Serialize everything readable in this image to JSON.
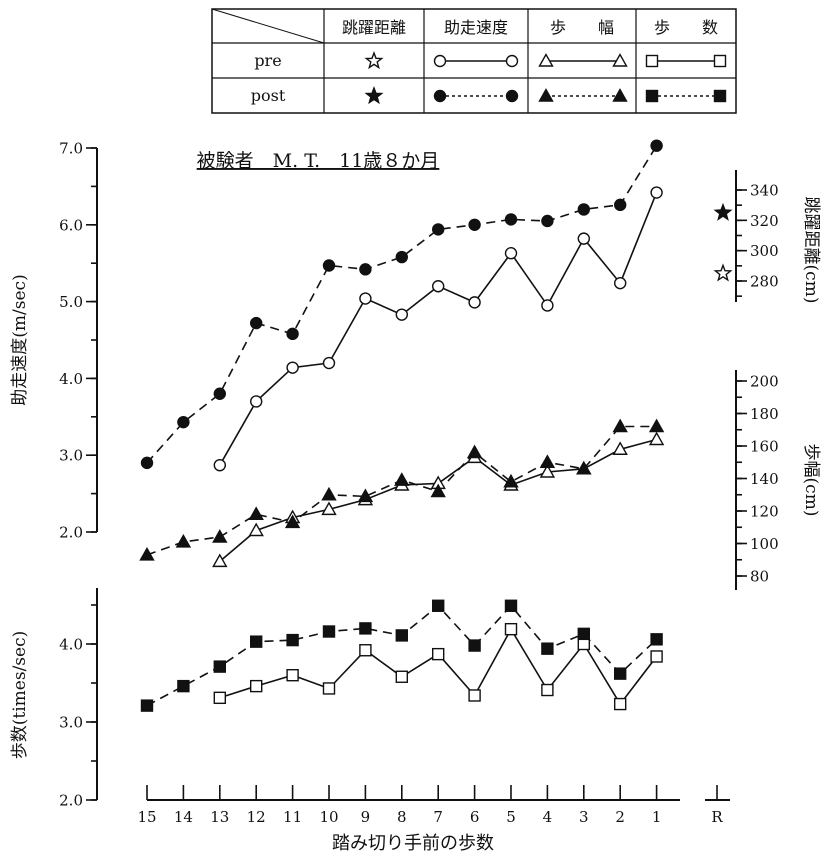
{
  "legend_table": {
    "columns": [
      "跳躍距離",
      "助走速度",
      "歩　　幅",
      "歩　　数"
    ],
    "rows": [
      {
        "label": "pre",
        "markers": [
          "star-open",
          "circle-open",
          "triangle-open",
          "square-open"
        ]
      },
      {
        "label": "post",
        "markers": [
          "star-filled",
          "circle-filled",
          "triangle-filled",
          "square-filled"
        ]
      }
    ]
  },
  "subject": "被験者　M. T.　11歳８か月",
  "colors": {
    "ink": "#111111",
    "background": "#ffffff"
  },
  "chart_data": [
    {
      "type": "line",
      "panel": "助走速度",
      "ylabel": "助走速度(m/sec)",
      "ylim": [
        2.0,
        7.0
      ],
      "yticks": [
        "2.0",
        "3.0",
        "4.0",
        "5.0",
        "6.0",
        "7.0"
      ],
      "x": [
        15,
        14,
        13,
        12,
        11,
        10,
        9,
        8,
        7,
        6,
        5,
        4,
        3,
        2,
        1
      ],
      "series": [
        {
          "name": "pre",
          "marker": "circle-open",
          "line": "solid",
          "values": [
            null,
            null,
            2.87,
            3.7,
            4.14,
            4.2,
            5.04,
            4.83,
            5.2,
            4.99,
            5.63,
            4.95,
            5.82,
            5.24,
            6.42
          ]
        },
        {
          "name": "post",
          "marker": "circle-filled",
          "line": "dashed",
          "values": [
            2.9,
            3.43,
            3.8,
            4.72,
            4.58,
            5.47,
            5.42,
            5.58,
            5.94,
            6.0,
            6.07,
            6.05,
            6.2,
            6.26,
            7.03
          ]
        }
      ]
    },
    {
      "type": "scatter",
      "panel": "跳躍距離",
      "ylabel": "跳躍距離(cm)",
      "ylim": [
        270,
        345
      ],
      "yticks": [
        "280",
        "300",
        "320",
        "340"
      ],
      "x": [
        "R"
      ],
      "series": [
        {
          "name": "pre",
          "marker": "star-open",
          "values": [
            285
          ]
        },
        {
          "name": "post",
          "marker": "star-filled",
          "values": [
            325
          ]
        }
      ]
    },
    {
      "type": "line",
      "panel": "歩幅",
      "ylabel": "歩幅(cm)",
      "ylim": [
        80,
        200
      ],
      "yticks": [
        "80",
        "100",
        "120",
        "140",
        "160",
        "180",
        "200"
      ],
      "x": [
        15,
        14,
        13,
        12,
        11,
        10,
        9,
        8,
        7,
        6,
        5,
        4,
        3,
        2,
        1
      ],
      "series": [
        {
          "name": "pre",
          "marker": "triangle-open",
          "line": "solid",
          "values": [
            null,
            null,
            89,
            108,
            116,
            121,
            127,
            136,
            137,
            153,
            136,
            144,
            146,
            158,
            164
          ]
        },
        {
          "name": "post",
          "marker": "triangle-filled",
          "line": "dashed",
          "values": [
            93,
            101,
            104,
            118,
            113,
            130,
            129,
            139,
            132,
            156,
            138,
            150,
            146,
            172,
            172
          ]
        }
      ]
    },
    {
      "type": "line",
      "panel": "歩数",
      "ylabel": "歩数(times/sec)",
      "ylim": [
        2.0,
        4.6
      ],
      "yticks": [
        "2.0",
        "3.0",
        "4.0"
      ],
      "xlabel": "踏み切り手前の歩数",
      "xticks": [
        "15",
        "14",
        "13",
        "12",
        "11",
        "10",
        "9",
        "8",
        "7",
        "6",
        "5",
        "4",
        "3",
        "2",
        "1",
        "R"
      ],
      "x": [
        15,
        14,
        13,
        12,
        11,
        10,
        9,
        8,
        7,
        6,
        5,
        4,
        3,
        2,
        1
      ],
      "series": [
        {
          "name": "pre",
          "marker": "square-open",
          "line": "solid",
          "values": [
            null,
            null,
            3.31,
            3.46,
            3.6,
            3.43,
            3.92,
            3.58,
            3.87,
            3.34,
            4.19,
            3.41,
            4.0,
            3.23,
            3.84
          ]
        },
        {
          "name": "post",
          "marker": "square-filled",
          "line": "dashed",
          "values": [
            3.21,
            3.46,
            3.71,
            4.03,
            4.05,
            4.16,
            4.2,
            4.11,
            4.49,
            3.98,
            4.49,
            3.94,
            4.13,
            3.62,
            4.06
          ]
        }
      ]
    }
  ]
}
